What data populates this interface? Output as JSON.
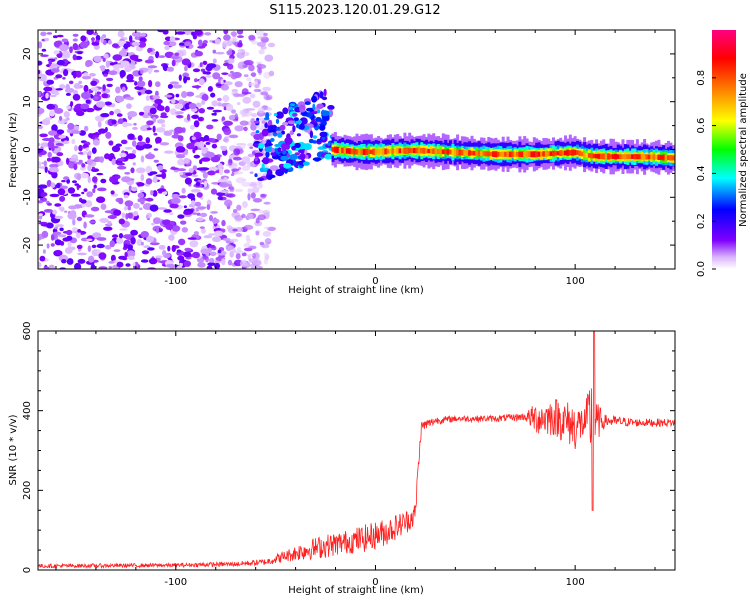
{
  "figure_title": "S115.2023.120.01.29.G12",
  "chart_data": [
    {
      "type": "heatmap",
      "xlabel": "Height of straight line (km)",
      "ylabel": "Frequency (Hz)",
      "xlim": [
        -169,
        150
      ],
      "ylim": [
        -25,
        25
      ],
      "xticks": [
        -100,
        0,
        100
      ],
      "yticks": [
        -20,
        -10,
        0,
        10,
        20
      ],
      "colorbar": {
        "label": "Normalized spectral amplitude",
        "range": [
          0,
          1
        ],
        "ticks": [
          "0.0",
          "0.2",
          "0.4",
          "0.6",
          "0.8"
        ],
        "colormap": [
          "#ffffff",
          "#d9b3ff",
          "#7f00ff",
          "#0000ff",
          "#00ffff",
          "#00ff00",
          "#ffff00",
          "#ff8000",
          "#ff0000",
          "#ff0080"
        ]
      },
      "description_points": {
        "noise_region_x": [
          -169,
          -60
        ],
        "scatter_region_x": [
          -60,
          -22
        ],
        "ridge": {
          "x": [
            -22,
            -10,
            0,
            10,
            20,
            40,
            60,
            80,
            90,
            100,
            105,
            110,
            120,
            130,
            140,
            150
          ],
          "freq": [
            0.0,
            -0.5,
            -0.5,
            -0.3,
            -0.2,
            -0.6,
            -1.0,
            -1.0,
            -0.8,
            -0.6,
            -1.2,
            -1.4,
            -1.5,
            -1.5,
            -1.6,
            -1.8
          ],
          "amplitude": [
            0.9,
            0.85,
            0.9,
            0.8,
            0.95,
            0.75,
            0.85,
            0.9,
            0.8,
            0.95,
            0.7,
            0.95,
            0.9,
            0.95,
            0.9,
            0.85
          ]
        }
      },
      "grid": false
    },
    {
      "type": "line",
      "xlabel": "Height of straight line (km)",
      "ylabel": "SNR (10 * v/v)",
      "xlim": [
        -169,
        150
      ],
      "ylim": [
        0,
        600
      ],
      "xticks": [
        -100,
        0,
        100
      ],
      "yticks": [
        0,
        200,
        400,
        600
      ],
      "color": "#ff2020",
      "grid": false,
      "envelope": {
        "x": [
          -169,
          -100,
          -70,
          -55,
          -45,
          -35,
          -25,
          -15,
          -5,
          5,
          15,
          20,
          21,
          23,
          30,
          40,
          60,
          75,
          80,
          90,
          100,
          105,
          108,
          110,
          115,
          130,
          150
        ],
        "baseline": [
          10,
          12,
          15,
          20,
          35,
          50,
          60,
          70,
          80,
          95,
          120,
          140,
          230,
          360,
          375,
          380,
          380,
          385,
          380,
          385,
          360,
          370,
          380,
          370,
          375,
          370,
          370
        ],
        "noise": [
          5,
          5,
          6,
          8,
          15,
          25,
          30,
          30,
          35,
          35,
          30,
          30,
          20,
          15,
          10,
          8,
          8,
          10,
          40,
          50,
          60,
          40,
          120,
          60,
          15,
          10,
          10
        ]
      }
    }
  ]
}
